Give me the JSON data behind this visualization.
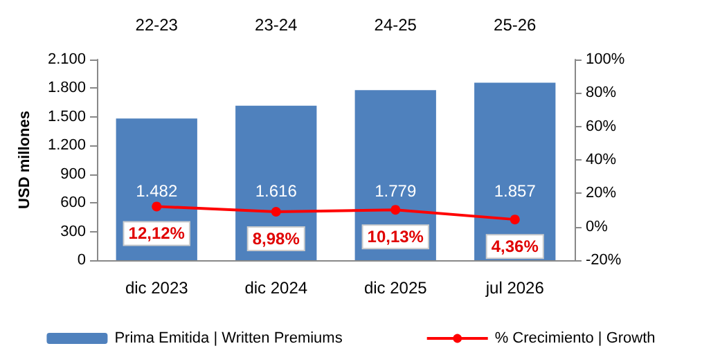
{
  "chart_data": {
    "type": "bar",
    "ylabel": "USD millones",
    "categories": [
      "dic 2023",
      "dic 2024",
      "dic 2025",
      "jul 2026"
    ],
    "series": [
      {
        "name": "Prima Emitida | Written Premiums",
        "color": "#4f81bd",
        "values": [
          1482,
          1616,
          1779,
          1857
        ],
        "value_labels": [
          "1.482",
          "1.616",
          "1.779",
          "1.857"
        ]
      },
      {
        "name": "% Crecimiento | Growth",
        "type": "line",
        "axis": "y2",
        "color": "#ff0000",
        "marker": "circle",
        "values": [
          12.12,
          8.98,
          10.13,
          4.36
        ],
        "value_labels": [
          "12,12%",
          "8,98%",
          "10,13%",
          "4,36%"
        ]
      }
    ],
    "ylim": [
      0,
      2100
    ],
    "yticks": [
      0,
      {
        "value": 300,
        "label": "300"
      },
      {
        "value": 600,
        "label": "600"
      },
      {
        "value": 900,
        "label": "900"
      },
      {
        "value": 1200,
        "label": "1.200"
      },
      {
        "value": 1500,
        "label": "1.500"
      },
      {
        "value": 1800,
        "label": "1.800"
      },
      {
        "value": 2100,
        "label": "2.100"
      }
    ],
    "y2lim": [
      -20,
      100
    ],
    "y2ticks": [
      {
        "value": -20,
        "label": "-20%"
      },
      {
        "value": 0,
        "label": "0%"
      },
      {
        "value": 20,
        "label": "20%"
      },
      {
        "value": 40,
        "label": "40%"
      },
      {
        "value": 60,
        "label": "60%"
      },
      {
        "value": 80,
        "label": "80%"
      },
      {
        "value": 100,
        "label": "100%"
      }
    ],
    "annotations": [
      "22-23",
      "23-24",
      "24-25",
      "25-26"
    ],
    "legend": "bottom",
    "grid": false
  }
}
